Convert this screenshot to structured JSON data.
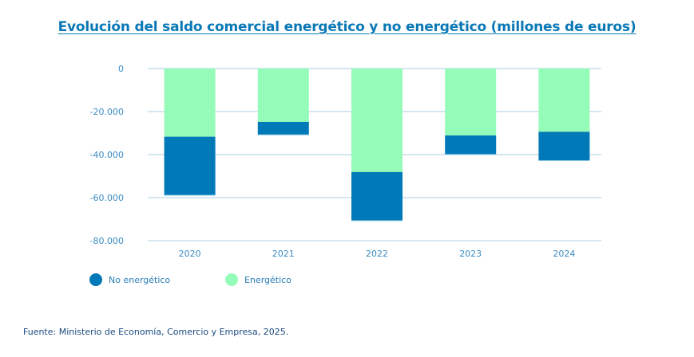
{
  "chart_data": {
    "type": "bar",
    "stacked": true,
    "title": "Evolución del saldo comercial energético y no energético (millones de euros)",
    "categories": [
      "2020",
      "2021",
      "2022",
      "2023",
      "2024"
    ],
    "series": [
      {
        "name": "Energético",
        "color": "#94fcb8",
        "values": [
          -31700,
          -24800,
          -48100,
          -31100,
          -29400
        ]
      },
      {
        "name": "No energético",
        "color": "#0079b8",
        "values": [
          -27200,
          -6000,
          -22600,
          -8800,
          -13400
        ]
      }
    ],
    "ylim": [
      -80000,
      0
    ],
    "yticks": [
      0,
      -20000,
      -40000,
      -60000,
      -80000
    ],
    "ytick_labels": [
      "0",
      "-20.000",
      "-40.000",
      "-60.000",
      "-80.000"
    ],
    "grid": true,
    "legend_placement": "bottom-left"
  },
  "legend": [
    {
      "label": "No energético",
      "color": "#0079b8"
    },
    {
      "label": "Energético",
      "color": "#94fcb8"
    }
  ],
  "source": "Fuente: Ministerio de Economía, Comercio y Empresa, 2025."
}
